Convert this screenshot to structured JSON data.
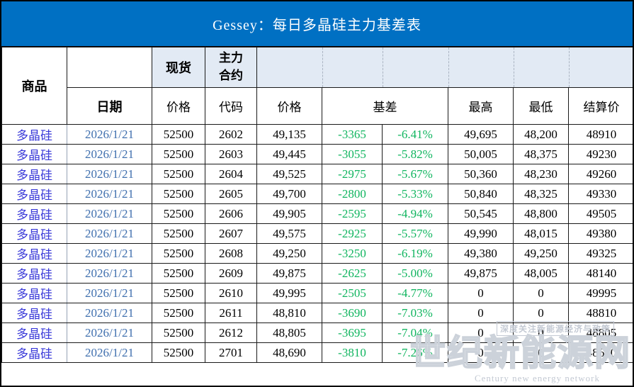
{
  "banner": {
    "title": "Gessey：每日多晶硅主力基差表"
  },
  "header": {
    "commodity": "商品",
    "date": "日期",
    "spot": "现货",
    "main_contract": "主力合约",
    "price_spot": "价格",
    "code": "代码",
    "price_futures": "价格",
    "basis": "基差",
    "high": "最高",
    "low": "最低",
    "settlement": "结算价"
  },
  "chart_data": {
    "type": "table",
    "title": "Gessey：每日多晶硅主力基差表",
    "columns": [
      "商品",
      "日期",
      "现货价格",
      "主力合约代码",
      "主力合约价格",
      "基差",
      "基差百分比",
      "最高",
      "最低",
      "结算价"
    ],
    "rows": [
      [
        "多晶硅",
        "2026/1/21",
        "52500",
        "2602",
        "49,135",
        "-3365",
        "-6.41%",
        "49,695",
        "48,200",
        "48910"
      ],
      [
        "多晶硅",
        "2026/1/21",
        "52500",
        "2603",
        "49,445",
        "-3055",
        "-5.82%",
        "50,005",
        "48,375",
        "49230"
      ],
      [
        "多晶硅",
        "2026/1/21",
        "52500",
        "2604",
        "49,525",
        "-2975",
        "-5.67%",
        "50,360",
        "48,230",
        "49260"
      ],
      [
        "多晶硅",
        "2026/1/21",
        "52500",
        "2605",
        "49,700",
        "-2800",
        "-5.33%",
        "50,840",
        "48,325",
        "49330"
      ],
      [
        "多晶硅",
        "2026/1/21",
        "52500",
        "2606",
        "49,905",
        "-2595",
        "-4.94%",
        "50,545",
        "48,800",
        "49505"
      ],
      [
        "多晶硅",
        "2026/1/21",
        "52500",
        "2607",
        "49,575",
        "-2925",
        "-5.57%",
        "49,990",
        "48,015",
        "49380"
      ],
      [
        "多晶硅",
        "2026/1/21",
        "52500",
        "2608",
        "49,250",
        "-3250",
        "-6.19%",
        "49,380",
        "49,250",
        "49325"
      ],
      [
        "多晶硅",
        "2026/1/21",
        "52500",
        "2609",
        "49,875",
        "-2625",
        "-5.00%",
        "49,875",
        "48,005",
        "48140"
      ],
      [
        "多晶硅",
        "2026/1/21",
        "52500",
        "2610",
        "49,995",
        "-2505",
        "-4.77%",
        "0",
        "0",
        "49995"
      ],
      [
        "多晶硅",
        "2026/1/21",
        "52500",
        "2611",
        "48,810",
        "-3690",
        "-7.03%",
        "0",
        "0",
        "48810"
      ],
      [
        "多晶硅",
        "2026/1/21",
        "52500",
        "2612",
        "48,805",
        "-3695",
        "-7.04%",
        "0",
        "0",
        "48805"
      ],
      [
        "多晶硅",
        "2026/1/21",
        "52500",
        "2701",
        "48,690",
        "-3810",
        "-7.26%",
        "0",
        "0",
        "48690"
      ]
    ]
  },
  "watermark": {
    "slogan": "深度关注新能源经济与政策",
    "brand": "世纪新能源网",
    "subtitle": "Century new energy network"
  },
  "colors": {
    "banner_bg": "#0070C3",
    "header_shade": "#E2EAF4",
    "basis_green": "#10B55F",
    "commodity_blue": "#3838D8",
    "date_blue": "#3F6FAE"
  }
}
